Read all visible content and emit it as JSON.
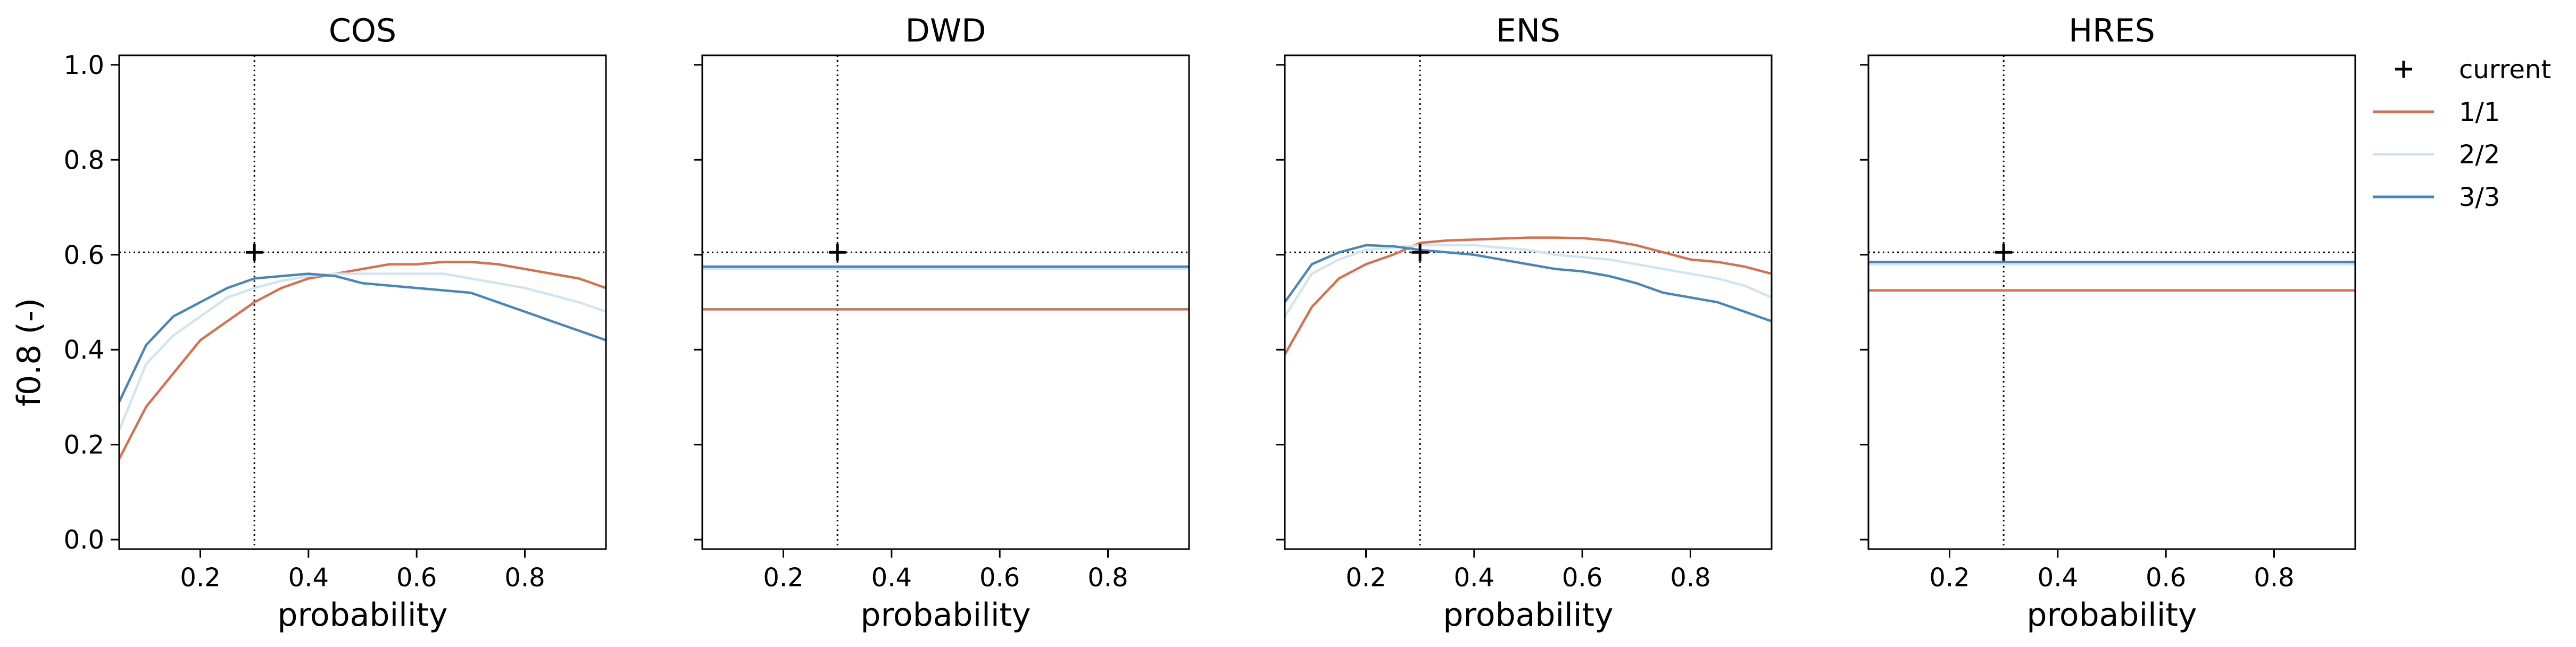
{
  "chart_data": {
    "type": "line",
    "ylabel": "f0.8 (-)",
    "xlabel": "probability",
    "xlim": [
      0.05,
      0.95
    ],
    "ylim": [
      -0.02,
      1.02
    ],
    "x_ticks": [
      0.2,
      0.4,
      0.6,
      0.8
    ],
    "x_tick_labels": [
      "0.2",
      "0.4",
      "0.6",
      "0.8"
    ],
    "y_ticks": [
      0.0,
      0.2,
      0.4,
      0.6,
      0.8,
      1.0
    ],
    "y_tick_labels": [
      "0.0",
      "0.2",
      "0.4",
      "0.6",
      "0.8",
      "1.0"
    ],
    "reference": {
      "x": 0.3,
      "y": 0.605,
      "marker_label": "current"
    },
    "legend": {
      "placement": "outside-right",
      "entries": [
        {
          "label": "current",
          "kind": "marker"
        },
        {
          "label": "1/1",
          "color": "#d6704f",
          "kind": "line"
        },
        {
          "label": "2/2",
          "color": "#d2e4f1",
          "kind": "line"
        },
        {
          "label": "3/3",
          "color": "#4a85b8",
          "kind": "line"
        }
      ]
    },
    "x": [
      0.05,
      0.1,
      0.15,
      0.2,
      0.25,
      0.3,
      0.35,
      0.4,
      0.45,
      0.5,
      0.55,
      0.6,
      0.65,
      0.7,
      0.75,
      0.8,
      0.85,
      0.9,
      0.95
    ],
    "panels": [
      {
        "title": "COS",
        "series": [
          {
            "name": "1/1",
            "values": [
              0.17,
              0.28,
              0.35,
              0.42,
              0.46,
              0.5,
              0.53,
              0.55,
              0.56,
              0.57,
              0.58,
              0.58,
              0.585,
              0.585,
              0.58,
              0.57,
              0.56,
              0.55,
              0.53
            ]
          },
          {
            "name": "2/2",
            "values": [
              0.23,
              0.37,
              0.43,
              0.47,
              0.51,
              0.53,
              0.545,
              0.555,
              0.56,
              0.56,
              0.56,
              0.56,
              0.56,
              0.55,
              0.54,
              0.53,
              0.515,
              0.5,
              0.48
            ]
          },
          {
            "name": "3/3",
            "values": [
              0.29,
              0.41,
              0.47,
              0.5,
              0.53,
              0.55,
              0.555,
              0.56,
              0.555,
              0.54,
              0.535,
              0.53,
              0.525,
              0.52,
              0.5,
              0.48,
              0.46,
              0.44,
              0.42
            ]
          }
        ]
      },
      {
        "title": "DWD",
        "series": [
          {
            "name": "1/1",
            "values": [
              0.485,
              0.485,
              0.485,
              0.485,
              0.485,
              0.485,
              0.485,
              0.485,
              0.485,
              0.485,
              0.485,
              0.485,
              0.485,
              0.485,
              0.485,
              0.485,
              0.485,
              0.485,
              0.485
            ]
          },
          {
            "name": "2/2",
            "values": [
              0.57,
              0.57,
              0.57,
              0.57,
              0.57,
              0.57,
              0.57,
              0.57,
              0.57,
              0.57,
              0.57,
              0.57,
              0.57,
              0.57,
              0.57,
              0.57,
              0.57,
              0.57,
              0.57
            ]
          },
          {
            "name": "3/3",
            "values": [
              0.575,
              0.575,
              0.575,
              0.575,
              0.575,
              0.575,
              0.575,
              0.575,
              0.575,
              0.575,
              0.575,
              0.575,
              0.575,
              0.575,
              0.575,
              0.575,
              0.575,
              0.575,
              0.575
            ]
          }
        ]
      },
      {
        "title": "ENS",
        "series": [
          {
            "name": "1/1",
            "values": [
              0.39,
              0.49,
              0.55,
              0.58,
              0.6,
              0.625,
              0.63,
              0.632,
              0.634,
              0.636,
              0.636,
              0.635,
              0.63,
              0.62,
              0.605,
              0.59,
              0.585,
              0.575,
              0.56
            ]
          },
          {
            "name": "2/2",
            "values": [
              0.47,
              0.56,
              0.59,
              0.61,
              0.615,
              0.62,
              0.62,
              0.62,
              0.615,
              0.61,
              0.6,
              0.595,
              0.59,
              0.58,
              0.57,
              0.56,
              0.55,
              0.535,
              0.51
            ]
          },
          {
            "name": "3/3",
            "values": [
              0.5,
              0.58,
              0.605,
              0.62,
              0.618,
              0.61,
              0.605,
              0.6,
              0.59,
              0.58,
              0.57,
              0.565,
              0.555,
              0.54,
              0.52,
              0.51,
              0.5,
              0.48,
              0.46
            ]
          }
        ]
      },
      {
        "title": "HRES",
        "series": [
          {
            "name": "1/1",
            "values": [
              0.525,
              0.525,
              0.525,
              0.525,
              0.525,
              0.525,
              0.525,
              0.525,
              0.525,
              0.525,
              0.525,
              0.525,
              0.525,
              0.525,
              0.525,
              0.525,
              0.525,
              0.525,
              0.525
            ]
          },
          {
            "name": "2/2",
            "values": [
              0.58,
              0.58,
              0.58,
              0.58,
              0.58,
              0.58,
              0.58,
              0.58,
              0.58,
              0.58,
              0.58,
              0.58,
              0.58,
              0.58,
              0.58,
              0.58,
              0.58,
              0.58,
              0.58
            ]
          },
          {
            "name": "3/3",
            "values": [
              0.585,
              0.585,
              0.585,
              0.585,
              0.585,
              0.585,
              0.585,
              0.585,
              0.585,
              0.585,
              0.585,
              0.585,
              0.585,
              0.585,
              0.585,
              0.585,
              0.585,
              0.585,
              0.585
            ]
          }
        ]
      }
    ]
  }
}
